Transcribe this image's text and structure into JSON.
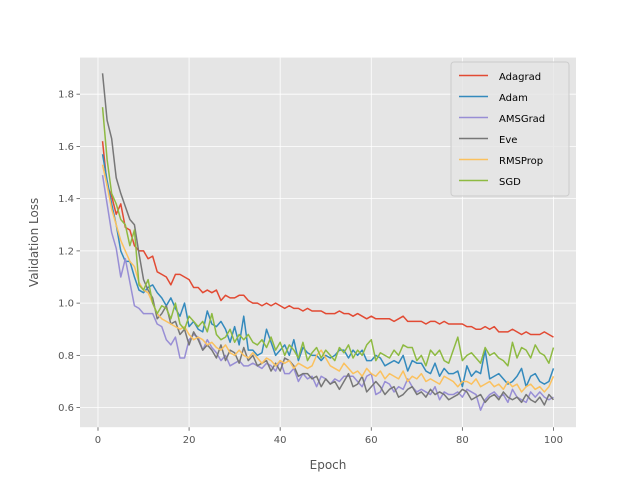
{
  "chart_data": {
    "type": "line",
    "title": "",
    "xlabel": "Epoch",
    "ylabel": "Validation Loss",
    "xlim": [
      -3.95,
      104.95
    ],
    "ylim": [
      0.525,
      1.94
    ],
    "xticks": [
      0,
      20,
      40,
      60,
      80,
      100
    ],
    "yticks": [
      0.6,
      0.8,
      1.0,
      1.2,
      1.4,
      1.6,
      1.8
    ],
    "grid": true,
    "legend_position": "top-right",
    "x": [
      1,
      2,
      3,
      4,
      5,
      6,
      7,
      8,
      9,
      10,
      11,
      12,
      13,
      14,
      15,
      16,
      17,
      18,
      19,
      20,
      21,
      22,
      23,
      24,
      25,
      26,
      27,
      28,
      29,
      30,
      31,
      32,
      33,
      34,
      35,
      36,
      37,
      38,
      39,
      40,
      41,
      42,
      43,
      44,
      45,
      46,
      47,
      48,
      49,
      50,
      51,
      52,
      53,
      54,
      55,
      56,
      57,
      58,
      59,
      60,
      61,
      62,
      63,
      64,
      65,
      66,
      67,
      68,
      69,
      70,
      71,
      72,
      73,
      74,
      75,
      76,
      77,
      78,
      79,
      80,
      81,
      82,
      83,
      84,
      85,
      86,
      87,
      88,
      89,
      90,
      91,
      92,
      93,
      94,
      95,
      96,
      97,
      98,
      99,
      100
    ],
    "series": [
      {
        "name": "Adagrad",
        "color": "#E24A33",
        "values": [
          1.62,
          1.45,
          1.41,
          1.34,
          1.38,
          1.29,
          1.28,
          1.22,
          1.2,
          1.2,
          1.17,
          1.18,
          1.12,
          1.11,
          1.1,
          1.07,
          1.11,
          1.11,
          1.1,
          1.09,
          1.06,
          1.06,
          1.04,
          1.05,
          1.04,
          1.05,
          1.01,
          1.03,
          1.02,
          1.02,
          1.03,
          1.03,
          1.01,
          1.0,
          1.0,
          0.99,
          1.0,
          0.99,
          1.0,
          0.99,
          0.98,
          0.99,
          0.98,
          0.98,
          0.97,
          0.98,
          0.97,
          0.97,
          0.97,
          0.96,
          0.96,
          0.96,
          0.97,
          0.96,
          0.96,
          0.95,
          0.96,
          0.95,
          0.94,
          0.95,
          0.94,
          0.94,
          0.94,
          0.94,
          0.93,
          0.94,
          0.95,
          0.93,
          0.93,
          0.93,
          0.93,
          0.92,
          0.93,
          0.93,
          0.92,
          0.93,
          0.92,
          0.92,
          0.92,
          0.92,
          0.91,
          0.91,
          0.9,
          0.9,
          0.91,
          0.9,
          0.91,
          0.89,
          0.89,
          0.89,
          0.9,
          0.89,
          0.88,
          0.89,
          0.88,
          0.88,
          0.88,
          0.89,
          0.88,
          0.87
        ]
      },
      {
        "name": "Adam",
        "color": "#348ABD",
        "values": [
          1.57,
          1.47,
          1.38,
          1.3,
          1.2,
          1.16,
          1.16,
          1.1,
          1.05,
          1.04,
          1.06,
          1.07,
          1.04,
          1.02,
          0.99,
          1.02,
          0.98,
          0.95,
          1.0,
          0.91,
          0.93,
          0.9,
          0.89,
          0.97,
          0.92,
          0.91,
          0.93,
          0.9,
          0.85,
          0.91,
          0.84,
          0.95,
          0.82,
          0.82,
          0.8,
          0.81,
          0.9,
          0.85,
          0.8,
          0.82,
          0.84,
          0.8,
          0.86,
          0.78,
          0.83,
          0.81,
          0.8,
          0.8,
          0.78,
          0.8,
          0.79,
          0.8,
          0.82,
          0.82,
          0.79,
          0.82,
          0.8,
          0.82,
          0.78,
          0.78,
          0.8,
          0.79,
          0.76,
          0.77,
          0.78,
          0.77,
          0.8,
          0.74,
          0.78,
          0.77,
          0.77,
          0.74,
          0.73,
          0.77,
          0.72,
          0.75,
          0.73,
          0.73,
          0.74,
          0.68,
          0.76,
          0.72,
          0.74,
          0.73,
          0.82,
          0.71,
          0.72,
          0.73,
          0.71,
          0.69,
          0.7,
          0.72,
          0.75,
          0.68,
          0.72,
          0.73,
          0.7,
          0.69,
          0.7,
          0.75
        ]
      },
      {
        "name": "AMSGrad",
        "color": "#988ED5",
        "values": [
          1.49,
          1.38,
          1.27,
          1.21,
          1.1,
          1.17,
          1.08,
          0.99,
          0.98,
          0.96,
          0.96,
          0.96,
          0.92,
          0.91,
          0.86,
          0.84,
          0.87,
          0.79,
          0.79,
          0.86,
          0.88,
          0.87,
          0.82,
          0.86,
          0.83,
          0.81,
          0.78,
          0.8,
          0.76,
          0.77,
          0.78,
          0.76,
          0.76,
          0.77,
          0.76,
          0.75,
          0.77,
          0.76,
          0.74,
          0.78,
          0.73,
          0.73,
          0.75,
          0.7,
          0.73,
          0.71,
          0.72,
          0.68,
          0.72,
          0.71,
          0.69,
          0.71,
          0.7,
          0.72,
          0.72,
          0.72,
          0.7,
          0.68,
          0.72,
          0.73,
          0.65,
          0.66,
          0.7,
          0.69,
          0.66,
          0.68,
          0.67,
          0.71,
          0.68,
          0.66,
          0.67,
          0.66,
          0.65,
          0.68,
          0.63,
          0.66,
          0.65,
          0.65,
          0.66,
          0.64,
          0.67,
          0.66,
          0.65,
          0.59,
          0.63,
          0.65,
          0.66,
          0.64,
          0.65,
          0.62,
          0.67,
          0.64,
          0.63,
          0.62,
          0.66,
          0.64,
          0.66,
          0.64,
          0.63,
          0.64
        ]
      },
      {
        "name": "Eve",
        "color": "#777777",
        "values": [
          1.88,
          1.7,
          1.63,
          1.48,
          1.42,
          1.37,
          1.32,
          1.3,
          1.19,
          1.09,
          1.05,
          1.02,
          0.94,
          0.96,
          0.99,
          0.92,
          0.93,
          0.88,
          0.9,
          0.84,
          0.89,
          0.86,
          0.82,
          0.84,
          0.82,
          0.79,
          0.84,
          0.78,
          0.82,
          0.81,
          0.77,
          0.83,
          0.78,
          0.8,
          0.76,
          0.77,
          0.78,
          0.74,
          0.77,
          0.74,
          0.79,
          0.78,
          0.76,
          0.72,
          0.73,
          0.73,
          0.71,
          0.72,
          0.68,
          0.71,
          0.69,
          0.7,
          0.67,
          0.7,
          0.73,
          0.68,
          0.69,
          0.72,
          0.66,
          0.68,
          0.7,
          0.68,
          0.65,
          0.67,
          0.68,
          0.64,
          0.65,
          0.67,
          0.68,
          0.65,
          0.66,
          0.64,
          0.67,
          0.65,
          0.66,
          0.65,
          0.63,
          0.64,
          0.65,
          0.67,
          0.66,
          0.63,
          0.64,
          0.65,
          0.62,
          0.64,
          0.65,
          0.63,
          0.66,
          0.64,
          0.63,
          0.64,
          0.62,
          0.65,
          0.63,
          0.62,
          0.64,
          0.61,
          0.65,
          0.63
        ]
      },
      {
        "name": "RMSProp",
        "color": "#FBC15E",
        "values": [
          1.53,
          1.45,
          1.36,
          1.3,
          1.24,
          1.2,
          1.16,
          1.14,
          1.08,
          1.05,
          1.04,
          1.0,
          0.96,
          0.94,
          0.93,
          0.92,
          0.91,
          0.9,
          0.91,
          0.88,
          0.86,
          0.87,
          0.86,
          0.84,
          0.85,
          0.83,
          0.82,
          0.84,
          0.81,
          0.8,
          0.82,
          0.8,
          0.79,
          0.81,
          0.79,
          0.77,
          0.79,
          0.78,
          0.76,
          0.78,
          0.77,
          0.78,
          0.75,
          0.77,
          0.76,
          0.75,
          0.76,
          0.8,
          0.82,
          0.79,
          0.76,
          0.75,
          0.74,
          0.77,
          0.75,
          0.73,
          0.74,
          0.72,
          0.75,
          0.73,
          0.72,
          0.74,
          0.71,
          0.73,
          0.72,
          0.71,
          0.74,
          0.7,
          0.72,
          0.71,
          0.73,
          0.7,
          0.71,
          0.7,
          0.69,
          0.72,
          0.71,
          0.7,
          0.68,
          0.7,
          0.7,
          0.69,
          0.71,
          0.68,
          0.69,
          0.7,
          0.68,
          0.69,
          0.67,
          0.7,
          0.68,
          0.69,
          0.66,
          0.68,
          0.69,
          0.67,
          0.68,
          0.66,
          0.68,
          0.72
        ]
      },
      {
        "name": "SGD",
        "color": "#8EBA42",
        "values": [
          1.75,
          1.55,
          1.42,
          1.38,
          1.32,
          1.3,
          1.22,
          1.28,
          1.07,
          1.05,
          1.09,
          1.0,
          0.96,
          0.99,
          0.98,
          0.94,
          1.0,
          0.92,
          0.9,
          0.95,
          0.93,
          0.91,
          0.93,
          0.89,
          0.96,
          0.88,
          0.86,
          0.87,
          0.9,
          0.85,
          0.88,
          0.86,
          0.88,
          0.85,
          0.84,
          0.86,
          0.83,
          0.87,
          0.82,
          0.85,
          0.8,
          0.84,
          0.82,
          0.79,
          0.85,
          0.78,
          0.81,
          0.83,
          0.79,
          0.82,
          0.8,
          0.78,
          0.83,
          0.81,
          0.84,
          0.79,
          0.82,
          0.8,
          0.84,
          0.86,
          0.78,
          0.81,
          0.8,
          0.79,
          0.82,
          0.8,
          0.84,
          0.83,
          0.83,
          0.78,
          0.8,
          0.76,
          0.82,
          0.8,
          0.82,
          0.78,
          0.77,
          0.82,
          0.87,
          0.78,
          0.8,
          0.81,
          0.79,
          0.77,
          0.83,
          0.8,
          0.81,
          0.79,
          0.78,
          0.76,
          0.85,
          0.79,
          0.83,
          0.82,
          0.79,
          0.84,
          0.81,
          0.8,
          0.77,
          0.83
        ]
      }
    ]
  }
}
